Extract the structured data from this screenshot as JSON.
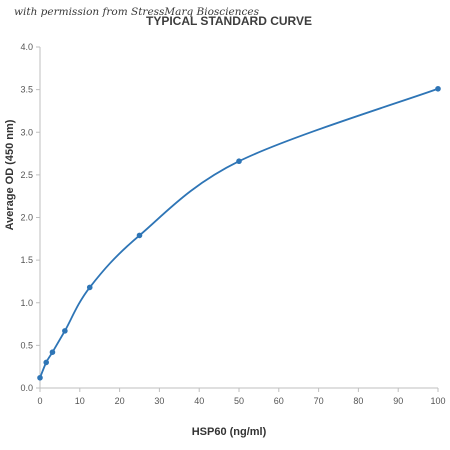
{
  "watermark": "with permission from StressMarq Biosciences",
  "chart_data": {
    "type": "line",
    "title": "TYPICAL STANDARD CURVE",
    "xlabel": "HSP60 (ng/ml)",
    "ylabel": "Average OD (450 nm)",
    "xlim": [
      0,
      100
    ],
    "ylim": [
      0,
      4.0
    ],
    "xticks": [
      "0",
      "10",
      "20",
      "30",
      "40",
      "50",
      "60",
      "70",
      "80",
      "90",
      "100"
    ],
    "yticks": [
      "0.0",
      "0.5",
      "1.0",
      "1.5",
      "2.0",
      "2.5",
      "3.0",
      "3.5",
      "4.0"
    ],
    "grid": false,
    "legend": "none",
    "series": [
      {
        "color": "#2e75b6",
        "x": [
          0,
          1.56,
          3.13,
          6.25,
          12.5,
          25,
          50,
          100
        ],
        "y": [
          0.12,
          0.3,
          0.42,
          0.67,
          1.18,
          1.79,
          2.66,
          3.51
        ]
      }
    ]
  }
}
